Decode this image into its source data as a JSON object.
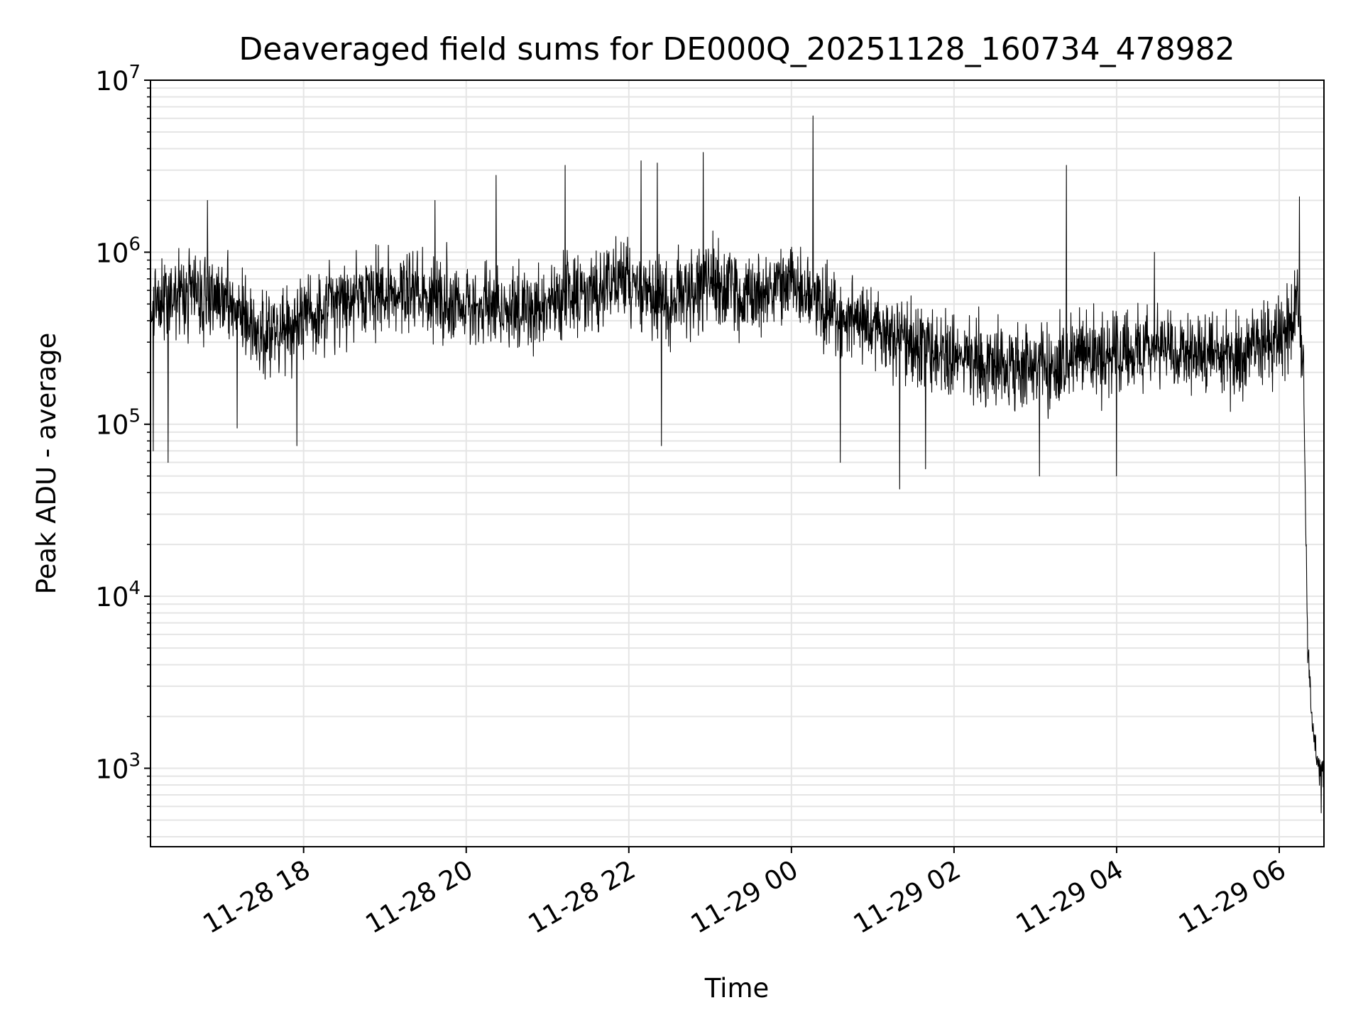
{
  "chart_data": {
    "type": "line",
    "title": "Deaveraged field sums for DE000Q_20251128_160734_478982",
    "xlabel": "Time",
    "ylabel": "Peak ADU - average",
    "yscale": "log",
    "grid": true,
    "legend": "none",
    "line_color": "#000000",
    "grid_color": "#e5e5e5",
    "xlim": [
      "2025-11-28 16:07",
      "2025-11-29 06:33"
    ],
    "ylim": [
      350,
      10000000
    ],
    "x_ticks": [
      {
        "value": "2025-11-28 18:00",
        "label": "11-28 18"
      },
      {
        "value": "2025-11-28 20:00",
        "label": "11-28 20"
      },
      {
        "value": "2025-11-28 22:00",
        "label": "11-28 22"
      },
      {
        "value": "2025-11-29 00:00",
        "label": "11-29 00"
      },
      {
        "value": "2025-11-29 02:00",
        "label": "11-29 02"
      },
      {
        "value": "2025-11-29 04:00",
        "label": "11-29 04"
      },
      {
        "value": "2025-11-29 06:00",
        "label": "11-29 06"
      }
    ],
    "y_ticks": [
      {
        "value": 1000,
        "base": "10",
        "exp": "3"
      },
      {
        "value": 10000,
        "base": "10",
        "exp": "4"
      },
      {
        "value": 100000,
        "base": "10",
        "exp": "5"
      },
      {
        "value": 1000000,
        "base": "10",
        "exp": "6"
      },
      {
        "value": 10000000,
        "base": "10",
        "exp": "7"
      }
    ],
    "series": [
      {
        "trend": [
          {
            "x": "2025-11-28 16:07",
            "y": 450000
          },
          {
            "x": "2025-11-28 16:30",
            "y": 600000
          },
          {
            "x": "2025-11-28 17:00",
            "y": 550000
          },
          {
            "x": "2025-11-28 17:30",
            "y": 320000
          },
          {
            "x": "2025-11-28 18:00",
            "y": 420000
          },
          {
            "x": "2025-11-28 18:30",
            "y": 500000
          },
          {
            "x": "2025-11-28 19:00",
            "y": 600000
          },
          {
            "x": "2025-11-28 19:30",
            "y": 550000
          },
          {
            "x": "2025-11-28 20:00",
            "y": 520000
          },
          {
            "x": "2025-11-28 20:30",
            "y": 450000
          },
          {
            "x": "2025-11-28 21:00",
            "y": 500000
          },
          {
            "x": "2025-11-28 21:30",
            "y": 600000
          },
          {
            "x": "2025-11-28 22:00",
            "y": 650000
          },
          {
            "x": "2025-11-28 22:30",
            "y": 500000
          },
          {
            "x": "2025-11-28 23:00",
            "y": 700000
          },
          {
            "x": "2025-11-28 23:30",
            "y": 550000
          },
          {
            "x": "2025-11-29 00:00",
            "y": 650000
          },
          {
            "x": "2025-11-29 00:30",
            "y": 450000
          },
          {
            "x": "2025-11-29 01:00",
            "y": 350000
          },
          {
            "x": "2025-11-29 01:30",
            "y": 300000
          },
          {
            "x": "2025-11-29 02:00",
            "y": 240000
          },
          {
            "x": "2025-11-29 02:30",
            "y": 220000
          },
          {
            "x": "2025-11-29 03:00",
            "y": 210000
          },
          {
            "x": "2025-11-29 03:30",
            "y": 240000
          },
          {
            "x": "2025-11-29 04:00",
            "y": 250000
          },
          {
            "x": "2025-11-29 04:30",
            "y": 270000
          },
          {
            "x": "2025-11-29 05:00",
            "y": 240000
          },
          {
            "x": "2025-11-29 05:30",
            "y": 250000
          },
          {
            "x": "2025-11-29 06:00",
            "y": 320000
          },
          {
            "x": "2025-11-29 06:15",
            "y": 500000
          },
          {
            "x": "2025-11-29 06:18",
            "y": 150000
          },
          {
            "x": "2025-11-29 06:21",
            "y": 5000
          },
          {
            "x": "2025-11-29 06:25",
            "y": 1500
          },
          {
            "x": "2025-11-29 06:28",
            "y": 1100
          },
          {
            "x": "2025-11-29 06:33",
            "y": 900
          }
        ],
        "spikes": [
          {
            "x": "2025-11-28 16:09",
            "y": 70000
          },
          {
            "x": "2025-11-28 16:20",
            "y": 60000
          },
          {
            "x": "2025-11-28 16:49",
            "y": 2000000
          },
          {
            "x": "2025-11-28 17:11",
            "y": 95000
          },
          {
            "x": "2025-11-28 17:55",
            "y": 75000
          },
          {
            "x": "2025-11-28 19:37",
            "y": 2000000
          },
          {
            "x": "2025-11-28 20:22",
            "y": 2800000
          },
          {
            "x": "2025-11-28 21:13",
            "y": 3200000
          },
          {
            "x": "2025-11-28 22:09",
            "y": 3400000
          },
          {
            "x": "2025-11-28 22:21",
            "y": 3300000
          },
          {
            "x": "2025-11-28 22:24",
            "y": 75000
          },
          {
            "x": "2025-11-28 22:55",
            "y": 3800000
          },
          {
            "x": "2025-11-29 00:16",
            "y": 6200000
          },
          {
            "x": "2025-11-29 00:36",
            "y": 60000
          },
          {
            "x": "2025-11-29 01:20",
            "y": 42000
          },
          {
            "x": "2025-11-29 01:39",
            "y": 55000
          },
          {
            "x": "2025-11-29 03:03",
            "y": 50000
          },
          {
            "x": "2025-11-29 03:23",
            "y": 3200000
          },
          {
            "x": "2025-11-29 04:00",
            "y": 50000
          },
          {
            "x": "2025-11-29 04:28",
            "y": 1000000
          },
          {
            "x": "2025-11-29 06:15",
            "y": 2100000
          },
          {
            "x": "2025-11-29 06:31",
            "y": 550
          }
        ]
      }
    ]
  }
}
